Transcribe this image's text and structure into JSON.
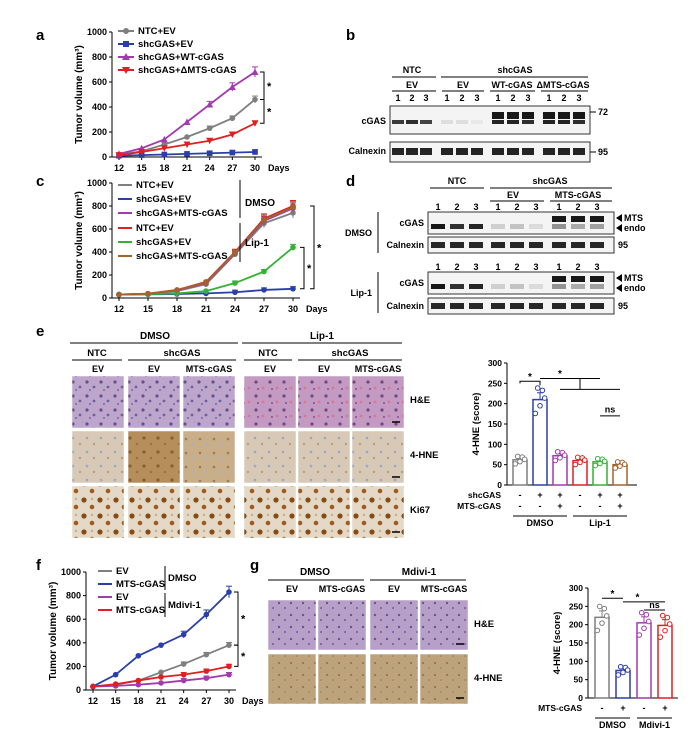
{
  "panels": {
    "a": "a",
    "b": "b",
    "c": "c",
    "d": "d",
    "e": "e",
    "f": "f",
    "g": "g"
  },
  "colors": {
    "gray": "#7f7f7f",
    "blue": "#2b3fa8",
    "purple": "#a23ab0",
    "red": "#e02020",
    "green": "#33b233",
    "brown": "#a0642d",
    "he_bg": "#b9a3c8",
    "hne_bg": "#c8ab85",
    "ki67_bg": "#d9c9b0"
  },
  "chart_data": [
    {
      "id": "a",
      "type": "line",
      "ylabel": "Tumor volume (mm³)",
      "xlabel": "Days",
      "x": [
        12,
        15,
        18,
        21,
        24,
        27,
        30
      ],
      "ylim": [
        0,
        1000
      ],
      "yticks": [
        0,
        200,
        400,
        600,
        800,
        1000
      ],
      "series": [
        {
          "name": "NTC+EV",
          "color": "#7f7f7f",
          "marker": "circle",
          "values": [
            20,
            45,
            100,
            160,
            230,
            310,
            460
          ]
        },
        {
          "name": "shcGAS+EV",
          "color": "#2b3fa8",
          "marker": "square",
          "values": [
            10,
            15,
            20,
            25,
            30,
            35,
            40
          ]
        },
        {
          "name": "shcGAS+WT-cGAS",
          "color": "#a23ab0",
          "marker": "triangle",
          "values": [
            25,
            70,
            140,
            280,
            420,
            560,
            680
          ]
        },
        {
          "name": "shcGAS+ΔMTS-cGAS",
          "color": "#e02020",
          "marker": "triangle-down",
          "values": [
            15,
            40,
            70,
            100,
            130,
            180,
            270
          ]
        }
      ],
      "annotations": [
        "*",
        "*"
      ]
    },
    {
      "id": "c",
      "type": "line",
      "ylabel": "Tumor volume (mm³)",
      "xlabel": "Days",
      "x": [
        12,
        15,
        18,
        21,
        24,
        27,
        30
      ],
      "ylim": [
        0,
        1000
      ],
      "yticks": [
        0,
        200,
        400,
        600,
        800,
        1000
      ],
      "groups": [
        "DMSO",
        "Lip-1"
      ],
      "series": [
        {
          "name": "NTC+EV",
          "color": "#7f7f7f",
          "values": [
            30,
            35,
            60,
            120,
            380,
            650,
            740
          ]
        },
        {
          "name": "shcGAS+EV",
          "color": "#2b3fa8",
          "values": [
            30,
            32,
            35,
            40,
            50,
            70,
            80
          ]
        },
        {
          "name": "shcGAS+MTS-cGAS",
          "color": "#a23ab0",
          "values": [
            30,
            36,
            65,
            130,
            390,
            670,
            780
          ]
        },
        {
          "name": "NTC+EV",
          "color": "#e02020",
          "values": [
            30,
            38,
            70,
            140,
            400,
            690,
            800
          ]
        },
        {
          "name": "shcGAS+EV",
          "color": "#33b233",
          "values": [
            30,
            33,
            40,
            60,
            130,
            230,
            440
          ]
        },
        {
          "name": "shcGAS+MTS-cGAS",
          "color": "#a0642d",
          "values": [
            30,
            37,
            68,
            135,
            395,
            680,
            790
          ]
        }
      ],
      "annotations": [
        "*",
        "*"
      ]
    },
    {
      "id": "e",
      "type": "bar",
      "ylabel": "4-HNE (score)",
      "ylim": [
        0,
        300
      ],
      "yticks": [
        0,
        50,
        100,
        150,
        200,
        250,
        300
      ],
      "categories": [
        "DMSO NTC EV",
        "DMSO shcGAS EV",
        "DMSO shcGAS MTS-cGAS",
        "Lip-1 NTC EV",
        "Lip-1 shcGAS EV",
        "Lip-1 shcGAS MTS-cGAS"
      ],
      "values": [
        62,
        210,
        72,
        60,
        57,
        50
      ],
      "colors": [
        "#7f7f7f",
        "#2b3fa8",
        "#a23ab0",
        "#e02020",
        "#33b233",
        "#a0642d"
      ],
      "rows": [
        {
          "label": "shcGAS",
          "marks": [
            "-",
            "+",
            "+",
            "-",
            "+",
            "+"
          ]
        },
        {
          "label": "MTS-cGAS",
          "marks": [
            "-",
            "-",
            "+",
            "-",
            "-",
            "+"
          ]
        }
      ],
      "groups": [
        "DMSO",
        "Lip-1"
      ],
      "annotations": [
        "*",
        "*",
        "ns"
      ]
    },
    {
      "id": "f",
      "type": "line",
      "ylabel": "Tumor volume (mm³)",
      "xlabel": "Days",
      "x": [
        12,
        15,
        18,
        21,
        24,
        27,
        30
      ],
      "ylim": [
        0,
        1000
      ],
      "yticks": [
        0,
        200,
        400,
        600,
        800,
        1000
      ],
      "groups": [
        "DMSO",
        "Mdivi-1"
      ],
      "series": [
        {
          "name": "EV",
          "color": "#7f7f7f",
          "values": [
            30,
            45,
            80,
            150,
            220,
            300,
            380
          ]
        },
        {
          "name": "MTS-cGAS",
          "color": "#2b3fa8",
          "values": [
            30,
            130,
            290,
            380,
            470,
            640,
            830
          ]
        },
        {
          "name": "EV",
          "color": "#a23ab0",
          "values": [
            30,
            35,
            45,
            60,
            80,
            100,
            130
          ]
        },
        {
          "name": "MTS-cGAS",
          "color": "#e02020",
          "values": [
            30,
            50,
            80,
            110,
            130,
            160,
            200
          ]
        }
      ],
      "annotations": [
        "*",
        "*"
      ]
    },
    {
      "id": "g",
      "type": "bar",
      "ylabel": "4-HNE (score)",
      "ylim": [
        0,
        300
      ],
      "yticks": [
        0,
        50,
        100,
        150,
        200,
        250,
        300
      ],
      "categories": [
        "DMSO EV",
        "DMSO MTS-cGAS",
        "Mdivi-1 EV",
        "Mdivi-1 MTS-cGAS"
      ],
      "values": [
        220,
        75,
        205,
        198
      ],
      "colors": [
        "#7f7f7f",
        "#2b3fa8",
        "#a23ab0",
        "#e02020"
      ],
      "rows": [
        {
          "label": "MTS-cGAS",
          "marks": [
            "-",
            "+",
            "-",
            "+"
          ]
        }
      ],
      "groups": [
        "DMSO",
        "Mdivi-1"
      ],
      "annotations": [
        "*",
        "*",
        "ns"
      ]
    }
  ],
  "blot_b": {
    "group_ntc": "NTC",
    "group_shcgas": "shcGAS",
    "sub_ev": "EV",
    "sub_ev2": "EV",
    "sub_wt": "WT-cGAS",
    "sub_dmts": "ΔMTS-cGAS",
    "lanes": [
      "1",
      "2",
      "3",
      "1",
      "2",
      "3",
      "1",
      "2",
      "3",
      "1",
      "2",
      "3"
    ],
    "row1": "cGAS",
    "row2": "Calnexin",
    "mw1": "72",
    "mw2": "95"
  },
  "blot_d": {
    "group_ntc": "NTC",
    "group_shcgas": "shcGAS",
    "sub_ev": "EV",
    "sub_mts": "MTS-cGAS",
    "lanes": [
      "1",
      "2",
      "3",
      "1",
      "2",
      "3",
      "1",
      "2",
      "3"
    ],
    "treat1": "DMSO",
    "treat2": "Lip-1",
    "row_cgas": "cGAS",
    "row_calnexin": "Calnexin",
    "mts": "MTS",
    "endo": "endo",
    "mw": "95"
  },
  "histo_e": {
    "treat1": "DMSO",
    "treat2": "Lip-1",
    "cols": [
      "NTC",
      "shcGAS",
      "NTC",
      "shcGAS"
    ],
    "subcols": [
      "EV",
      "EV",
      "MTS-cGAS",
      "EV",
      "EV",
      "MTS-cGAS"
    ],
    "rows": [
      "H&E",
      "4-HNE",
      "Ki67"
    ]
  },
  "histo_g": {
    "treat1": "DMSO",
    "treat2": "Mdivi-1",
    "subcols": [
      "EV",
      "MTS-cGAS",
      "EV",
      "MTS-cGAS"
    ],
    "rows": [
      "H&E",
      "4-HNE"
    ]
  },
  "legend_a": [
    "NTC+EV",
    "shcGAS+EV",
    "shcGAS+WT-cGAS",
    "shcGAS+ΔMTS-cGAS"
  ],
  "legend_c": [
    "NTC+EV",
    "shcGAS+EV",
    "shcGAS+MTS-cGAS",
    "NTC+EV",
    "shcGAS+EV",
    "shcGAS+MTS-cGAS"
  ],
  "legend_c_groups": [
    "DMSO",
    "Lip-1"
  ],
  "legend_f": [
    "EV",
    "MTS-cGAS",
    "EV",
    "MTS-cGAS"
  ],
  "legend_f_groups": [
    "DMSO",
    "Mdivi-1"
  ],
  "axis": {
    "xticks": [
      "12",
      "15",
      "18",
      "21",
      "24",
      "27",
      "30"
    ],
    "days": "Days",
    "ylabel_tumor": "Tumor volume (mm³)",
    "ylabel_hne": "4-HNE (score)",
    "yticks_tumor": [
      "0",
      "200",
      "400",
      "600",
      "800",
      "1000"
    ],
    "yticks_hne": [
      "0",
      "50",
      "100",
      "150",
      "200",
      "250",
      "300"
    ]
  }
}
